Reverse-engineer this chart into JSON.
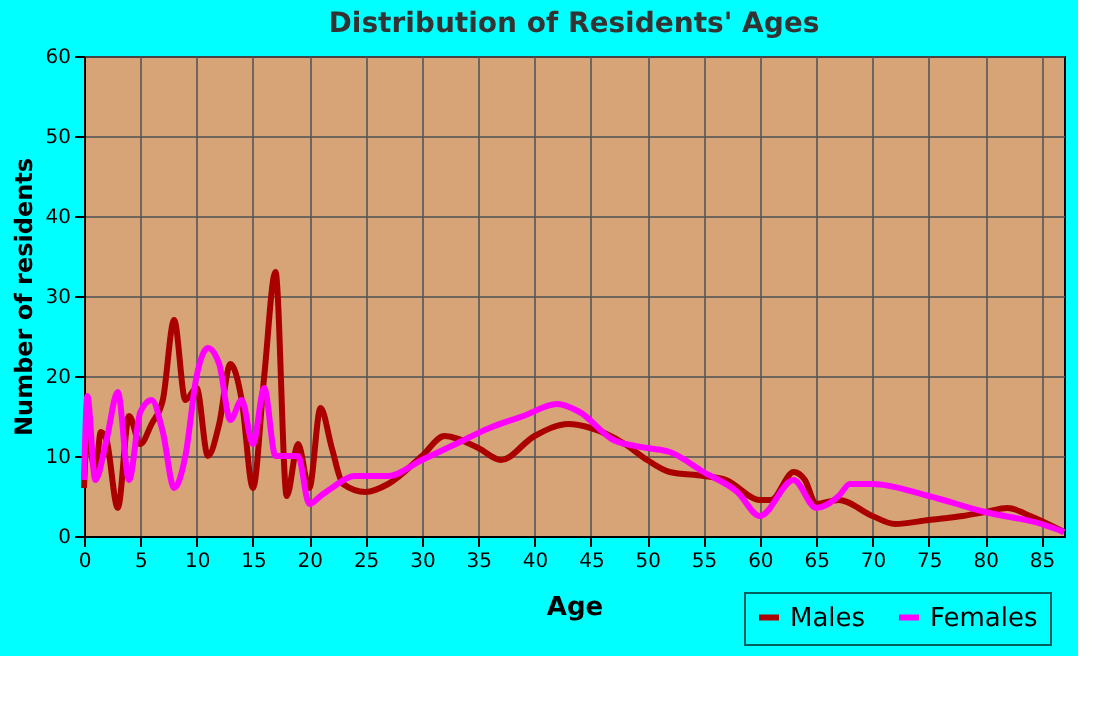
{
  "chart_data": {
    "type": "line",
    "title": "Distribution of Residents' Ages",
    "xlabel": "Age",
    "ylabel": "Number of residents",
    "xlim": [
      0,
      87
    ],
    "xticks": [
      0,
      5,
      10,
      15,
      20,
      25,
      30,
      35,
      40,
      45,
      50,
      55,
      60,
      65,
      70,
      75,
      80,
      85
    ],
    "ylim": [
      0,
      60
    ],
    "yticks": [
      0,
      10,
      20,
      30,
      40,
      50,
      60
    ],
    "grid": true,
    "legend": "bottom right",
    "line_style": "solid",
    "marker": "none",
    "series": [
      {
        "name": "Males",
        "color": "#aa0000",
        "x": [
          0,
          0.3,
          1,
          1.5,
          2,
          3,
          4,
          5,
          6,
          7,
          8,
          9,
          10,
          11,
          12,
          13,
          14,
          15,
          16,
          17,
          18,
          19,
          20,
          21,
          22,
          23,
          25,
          27,
          30,
          32,
          35,
          37,
          40,
          43,
          45,
          48,
          50,
          52,
          55,
          57,
          60,
          61,
          63,
          64,
          65,
          67,
          70,
          72,
          75,
          78,
          80,
          82,
          84,
          87
        ],
        "values": [
          6,
          13,
          8,
          13,
          12,
          3.5,
          15,
          11.5,
          14,
          17,
          27,
          17,
          18.5,
          10,
          14,
          21.5,
          17,
          6,
          20,
          33,
          5,
          11.5,
          6,
          16,
          11,
          6.5,
          5.5,
          6.5,
          10,
          12.5,
          11,
          9.5,
          12.5,
          14,
          13.5,
          11.5,
          9.5,
          8,
          7.5,
          7,
          4.5,
          4.5,
          8,
          7,
          4,
          4.5,
          2.5,
          1.5,
          2,
          2.5,
          3,
          3.5,
          2.5,
          0.5
        ]
      },
      {
        "name": "Females",
        "color": "#ff00ff",
        "x": [
          0,
          0.3,
          1,
          2,
          3,
          4,
          5,
          6,
          7,
          8,
          9,
          10,
          11,
          12,
          13,
          14,
          15,
          16,
          17,
          18,
          19,
          20,
          21,
          22,
          24,
          27,
          30,
          33,
          36,
          39,
          42,
          44,
          47,
          50,
          52,
          55,
          58,
          60,
          63,
          65,
          67,
          68,
          70,
          75,
          80,
          85,
          87
        ],
        "values": [
          7,
          17.5,
          7,
          12,
          18,
          7,
          15.5,
          17,
          13,
          6,
          10,
          20,
          23.5,
          21.5,
          14.5,
          17,
          11.5,
          18.5,
          10,
          10,
          10,
          4,
          5,
          6,
          7.5,
          7.5,
          9.5,
          11.5,
          13.5,
          15,
          16.5,
          15.5,
          12,
          11,
          10.5,
          8,
          5.5,
          2.5,
          7,
          3.5,
          5,
          6.5,
          6.5,
          5,
          3,
          1.5,
          0.5
        ]
      }
    ]
  }
}
